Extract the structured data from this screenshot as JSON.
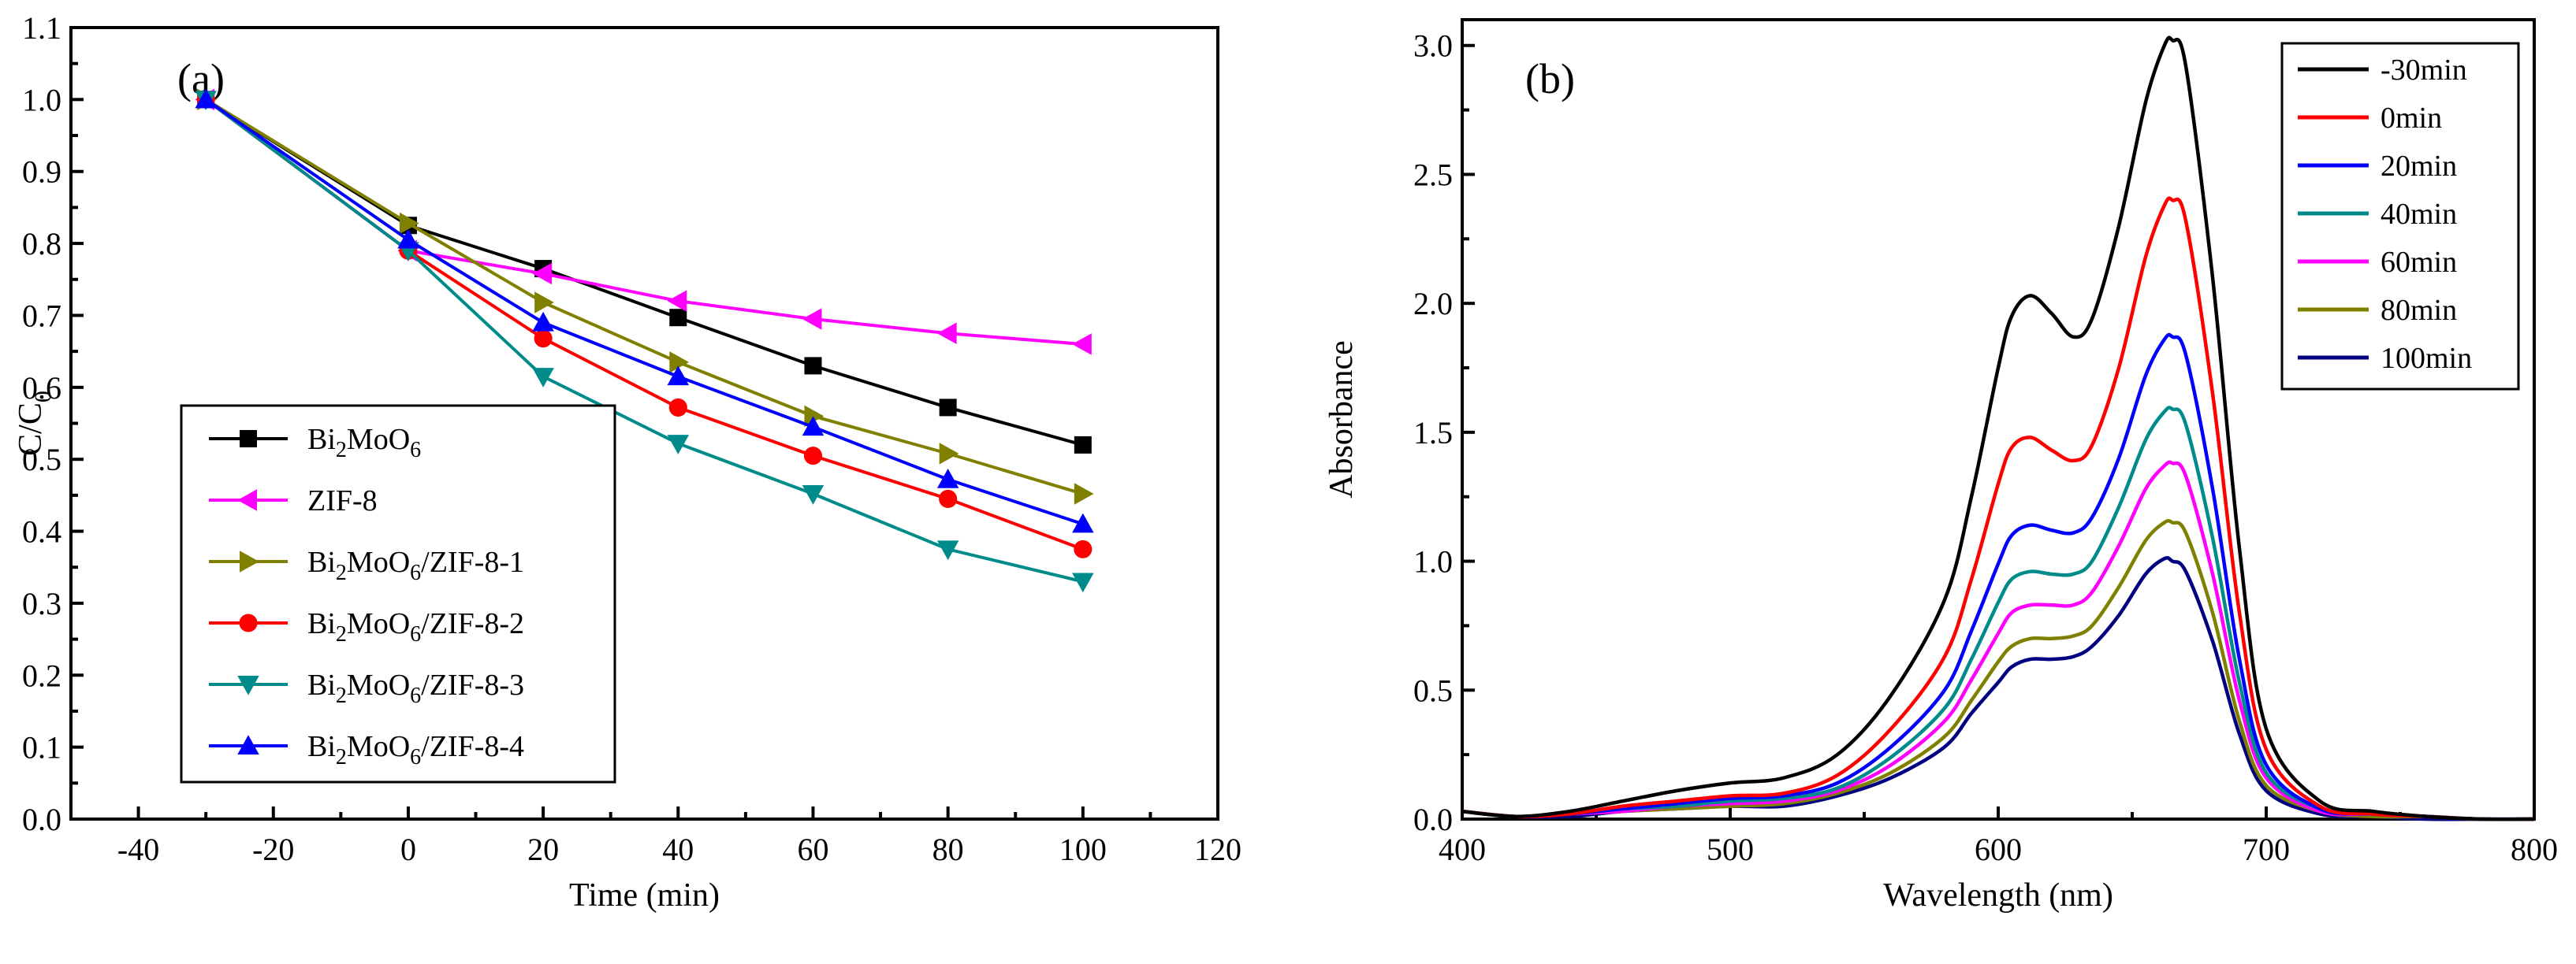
{
  "chart_data": [
    {
      "type": "line",
      "panel_label": "(a)",
      "xlabel": "Time (min)",
      "ylabel": "C/C",
      "ylabel_sub": "0",
      "xlim": [
        -50,
        120
      ],
      "ylim": [
        0.0,
        1.1
      ],
      "xticks": [
        -40,
        -20,
        0,
        20,
        40,
        60,
        80,
        100,
        120
      ],
      "yticks": [
        "0.0",
        "0.1",
        "0.2",
        "0.3",
        "0.4",
        "0.5",
        "0.6",
        "0.7",
        "0.8",
        "0.9",
        "1.0",
        "1.1"
      ],
      "x": [
        -30,
        0,
        20,
        40,
        60,
        80,
        100
      ],
      "legend_position": "bottom-left",
      "series": [
        {
          "name": "Bi2MoO6",
          "label": [
            [
              "Bi",
              ""
            ],
            [
              "2",
              "sub"
            ],
            [
              "MoO",
              ""
            ],
            [
              "6",
              "sub"
            ]
          ],
          "color": "#000000",
          "marker": "square",
          "values": [
            1.0,
            0.825,
            0.765,
            0.697,
            0.63,
            0.572,
            0.52
          ]
        },
        {
          "name": "ZIF-8",
          "label": [
            [
              "ZIF-8",
              ""
            ]
          ],
          "color": "#ff00ff",
          "marker": "triangle-left",
          "values": [
            1.0,
            0.79,
            0.758,
            0.72,
            0.695,
            0.675,
            0.66
          ]
        },
        {
          "name": "Bi2MoO6/ZIF-8-1",
          "label": [
            [
              "Bi",
              ""
            ],
            [
              "2",
              "sub"
            ],
            [
              "MoO",
              ""
            ],
            [
              "6",
              "sub"
            ],
            [
              "/ZIF-8-1",
              ""
            ]
          ],
          "color": "#808000",
          "marker": "triangle-right",
          "values": [
            1.0,
            0.828,
            0.718,
            0.635,
            0.56,
            0.508,
            0.452
          ]
        },
        {
          "name": "Bi2MoO6/ZIF-8-2",
          "label": [
            [
              "Bi",
              ""
            ],
            [
              "2",
              "sub"
            ],
            [
              "MoO",
              ""
            ],
            [
              "6",
              "sub"
            ],
            [
              "/ZIF-8-2",
              ""
            ]
          ],
          "color": "#ff0000",
          "marker": "circle",
          "values": [
            1.0,
            0.79,
            0.668,
            0.572,
            0.505,
            0.445,
            0.375
          ]
        },
        {
          "name": "Bi2MoO6/ZIF-8-3",
          "label": [
            [
              "Bi",
              ""
            ],
            [
              "2",
              "sub"
            ],
            [
              "MoO",
              ""
            ],
            [
              "6",
              "sub"
            ],
            [
              "/ZIF-8-3",
              ""
            ]
          ],
          "color": "#008b8b",
          "marker": "triangle-down",
          "values": [
            1.0,
            0.79,
            0.615,
            0.522,
            0.452,
            0.375,
            0.33
          ]
        },
        {
          "name": "Bi2MoO6/ZIF-8-4",
          "label": [
            [
              "Bi",
              ""
            ],
            [
              "2",
              "sub"
            ],
            [
              "MoO",
              ""
            ],
            [
              "6",
              "sub"
            ],
            [
              "/ZIF-8-4",
              ""
            ]
          ],
          "color": "#0000ff",
          "marker": "triangle-up",
          "values": [
            1.0,
            0.805,
            0.69,
            0.615,
            0.545,
            0.472,
            0.41
          ]
        }
      ]
    },
    {
      "type": "line",
      "panel_label": "(b)",
      "xlabel": "Wavelength (nm)",
      "ylabel": "Absorbance",
      "xlim": [
        400,
        800
      ],
      "ylim": [
        0.0,
        3.1
      ],
      "xticks": [
        400,
        500,
        600,
        700,
        800
      ],
      "yticks": [
        "0.0",
        "0.5",
        "1.0",
        "1.5",
        "2.0",
        "2.5",
        "3.0"
      ],
      "legend_position": "top-right",
      "x": [
        400,
        420,
        440,
        460,
        480,
        500,
        520,
        540,
        560,
        580,
        590,
        600,
        605,
        612,
        620,
        628,
        635,
        645,
        655,
        662,
        665,
        670,
        680,
        690,
        700,
        720,
        740,
        760,
        780,
        800
      ],
      "series": [
        {
          "name": "-30min",
          "color": "#000000",
          "values": [
            0.03,
            0.01,
            0.03,
            0.07,
            0.11,
            0.14,
            0.16,
            0.25,
            0.48,
            0.85,
            1.25,
            1.75,
            1.95,
            2.03,
            1.96,
            1.87,
            1.94,
            2.3,
            2.78,
            3.0,
            3.02,
            2.92,
            2.1,
            1.05,
            0.35,
            0.07,
            0.03,
            0.01,
            0.0,
            0.0
          ]
        },
        {
          "name": "0min",
          "color": "#ff0000",
          "values": [
            0.03,
            0.01,
            0.02,
            0.05,
            0.07,
            0.09,
            0.1,
            0.17,
            0.35,
            0.63,
            0.93,
            1.3,
            1.44,
            1.48,
            1.43,
            1.39,
            1.45,
            1.75,
            2.18,
            2.38,
            2.4,
            2.32,
            1.65,
            0.8,
            0.27,
            0.05,
            0.02,
            0.01,
            0.0,
            0.0
          ]
        },
        {
          "name": "20min",
          "color": "#0000ff",
          "values": [
            0.03,
            0.01,
            0.02,
            0.04,
            0.06,
            0.08,
            0.09,
            0.14,
            0.28,
            0.5,
            0.73,
            0.99,
            1.1,
            1.14,
            1.12,
            1.11,
            1.17,
            1.4,
            1.72,
            1.86,
            1.87,
            1.8,
            1.28,
            0.62,
            0.21,
            0.04,
            0.02,
            0.01,
            0.0,
            0.0
          ]
        },
        {
          "name": "40min",
          "color": "#008b8b",
          "values": [
            0.03,
            0.01,
            0.02,
            0.04,
            0.05,
            0.07,
            0.08,
            0.12,
            0.24,
            0.43,
            0.62,
            0.84,
            0.93,
            0.96,
            0.95,
            0.95,
            1.0,
            1.21,
            1.47,
            1.58,
            1.59,
            1.53,
            1.09,
            0.53,
            0.18,
            0.04,
            0.02,
            0.01,
            0.0,
            0.0
          ]
        },
        {
          "name": "60min",
          "color": "#ff00ff",
          "values": [
            0.03,
            0.01,
            0.02,
            0.03,
            0.05,
            0.06,
            0.07,
            0.11,
            0.21,
            0.38,
            0.54,
            0.72,
            0.8,
            0.83,
            0.83,
            0.83,
            0.88,
            1.06,
            1.28,
            1.37,
            1.38,
            1.33,
            0.95,
            0.46,
            0.16,
            0.03,
            0.02,
            0.01,
            0.0,
            0.0
          ]
        },
        {
          "name": "80min",
          "color": "#808000",
          "values": [
            0.03,
            0.01,
            0.02,
            0.03,
            0.04,
            0.05,
            0.06,
            0.1,
            0.18,
            0.32,
            0.46,
            0.61,
            0.67,
            0.7,
            0.7,
            0.71,
            0.75,
            0.9,
            1.08,
            1.15,
            1.15,
            1.11,
            0.8,
            0.38,
            0.13,
            0.03,
            0.01,
            0.01,
            0.0,
            0.0
          ]
        },
        {
          "name": "100min",
          "color": "#000080",
          "values": [
            0.03,
            0.01,
            0.01,
            0.03,
            0.04,
            0.05,
            0.05,
            0.09,
            0.16,
            0.28,
            0.41,
            0.53,
            0.59,
            0.62,
            0.62,
            0.63,
            0.67,
            0.79,
            0.95,
            1.01,
            1.0,
            0.96,
            0.69,
            0.33,
            0.11,
            0.02,
            0.01,
            0.0,
            0.0,
            0.0
          ]
        }
      ]
    }
  ]
}
